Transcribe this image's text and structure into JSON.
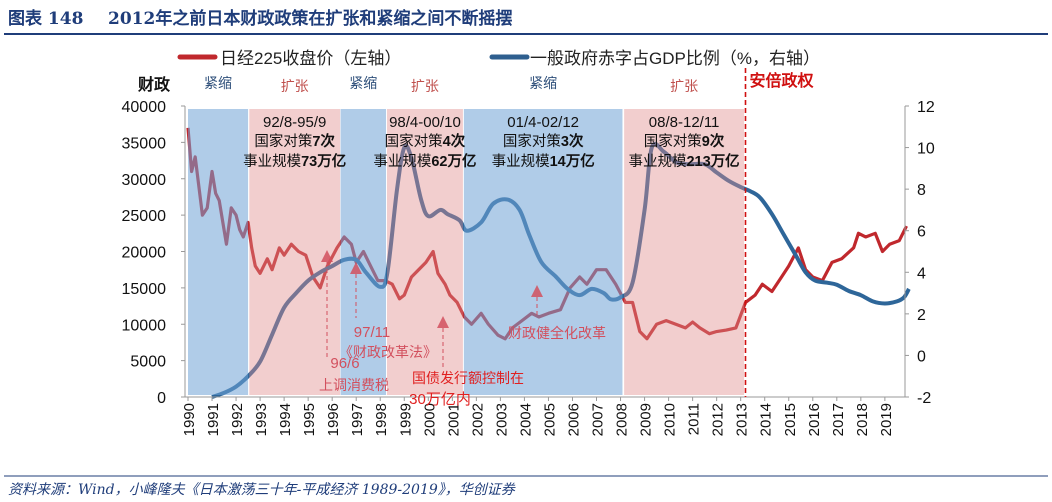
{
  "header": {
    "figure_label": "图表 148",
    "title": "2012年之前日本财政政策在扩张和紧缩之间不断摇摆"
  },
  "source": "资料来源：Wind，小峰隆夫《日本激荡三十年-平成经济 1989-2019》，华创证券",
  "colors": {
    "nikkei": "#c0282d",
    "deficit": "#2e6699",
    "tight_band": "#6fa3d6",
    "expand_band": "#e08a8a",
    "title": "#1f3d7a",
    "annotation": "#d2505e",
    "abe": "#d01010"
  },
  "chart_data": {
    "type": "line",
    "left_axis_title": "财政",
    "legend": [
      {
        "name": "日经225收盘价（左轴）",
        "color": "#c0282d"
      },
      {
        "name": "一般政府赤字占GDP比例（%，右轴）",
        "color": "#2e6699"
      }
    ],
    "xlim": [
      1990,
      2020
    ],
    "x_ticks": [
      "1990",
      "1991",
      "1992",
      "1993",
      "1994",
      "1995",
      "1996",
      "1997",
      "1998",
      "1999",
      "2000",
      "2001",
      "2002",
      "2003",
      "2004",
      "2005",
      "2006",
      "2007",
      "2008",
      "2009",
      "2010",
      "2011",
      "2012",
      "2013",
      "2014",
      "2015",
      "2016",
      "2017",
      "2018",
      "2019"
    ],
    "y_left": {
      "lim": [
        0,
        40000
      ],
      "ticks": [
        "0",
        "5000",
        "10000",
        "15000",
        "20000",
        "25000",
        "30000",
        "35000",
        "40000"
      ]
    },
    "y_right": {
      "lim": [
        -2,
        12
      ],
      "ticks": [
        "-2",
        "0",
        "2",
        "4",
        "6",
        "8",
        "10",
        "12"
      ]
    },
    "series": [
      {
        "name": "日经225收盘价（左轴）",
        "axis": "left",
        "x": [
          1990.0,
          1990.15,
          1990.3,
          1990.45,
          1990.6,
          1990.8,
          1991.0,
          1991.15,
          1991.3,
          1991.6,
          1991.8,
          1992.0,
          1992.15,
          1992.3,
          1992.5,
          1992.65,
          1992.8,
          1993.0,
          1993.3,
          1993.5,
          1993.8,
          1994.0,
          1994.3,
          1994.6,
          1994.9,
          1995.2,
          1995.5,
          1995.8,
          1996.2,
          1996.5,
          1996.8,
          1997.0,
          1997.3,
          1997.6,
          1997.9,
          1998.2,
          1998.5,
          1998.8,
          1999.0,
          1999.3,
          1999.6,
          1999.9,
          2000.2,
          2000.4,
          2000.7,
          2000.9,
          2001.2,
          2001.5,
          2001.8,
          2002.2,
          2002.5,
          2002.9,
          2003.2,
          2003.5,
          2003.9,
          2004.3,
          2004.6,
          2005.0,
          2005.5,
          2005.9,
          2006.3,
          2006.6,
          2007.0,
          2007.4,
          2007.8,
          2008.2,
          2008.5,
          2008.8,
          2009.1,
          2009.5,
          2009.9,
          2010.3,
          2010.7,
          2011.0,
          2011.3,
          2011.7,
          2012.0,
          2012.4,
          2012.8,
          2013.2,
          2013.6,
          2013.9,
          2014.3,
          2014.7,
          2015.0,
          2015.4,
          2015.7,
          2016.0,
          2016.4,
          2016.8,
          2017.2,
          2017.7,
          2017.9,
          2018.2,
          2018.6,
          2018.9,
          2019.2,
          2019.6,
          2019.9
        ],
        "y": [
          37000,
          31000,
          33000,
          29000,
          25000,
          26000,
          31000,
          28000,
          27000,
          21000,
          26000,
          25000,
          23000,
          22000,
          24000,
          20500,
          18000,
          17000,
          19000,
          17500,
          20500,
          19500,
          21000,
          20000,
          19500,
          16500,
          15000,
          18000,
          20500,
          22000,
          21000,
          18500,
          20000,
          18000,
          16000,
          16000,
          15500,
          13500,
          14000,
          16500,
          17500,
          18500,
          20000,
          17000,
          15500,
          14000,
          13000,
          11000,
          10000,
          11500,
          10000,
          8500,
          8000,
          9500,
          10500,
          11500,
          11000,
          11500,
          12000,
          15000,
          16500,
          15500,
          17500,
          17500,
          15500,
          13000,
          13000,
          9000,
          8000,
          10000,
          10500,
          10000,
          9500,
          10300,
          9500,
          8700,
          9000,
          9200,
          9500,
          13000,
          14000,
          15500,
          14500,
          16500,
          18000,
          20500,
          17500,
          16500,
          16000,
          18500,
          19000,
          20500,
          22500,
          22000,
          22500,
          20000,
          21000,
          21500,
          23500
        ]
      },
      {
        "name": "一般政府赤字占GDP比例（%，右轴）",
        "axis": "right",
        "x": [
          1991.0,
          1991.5,
          1992.0,
          1992.5,
          1993.0,
          1993.5,
          1994.0,
          1994.5,
          1995.0,
          1995.5,
          1996.0,
          1996.5,
          1997.0,
          1997.4,
          1998.0,
          1998.3,
          1998.7,
          1999.0,
          1999.3,
          1999.7,
          2000.0,
          2000.5,
          2000.8,
          2001.3,
          2001.6,
          2002.2,
          2002.7,
          2003.3,
          2003.8,
          2004.2,
          2004.7,
          2005.3,
          2005.8,
          2006.3,
          2006.8,
          2007.3,
          2007.6,
          2008.0,
          2008.5,
          2009.0,
          2009.3,
          2009.8,
          2010.3,
          2010.8,
          2011.5,
          2012.0,
          2012.5,
          2013.0,
          2013.4,
          2013.8,
          2014.3,
          2014.8,
          2015.3,
          2015.7,
          2016.1,
          2016.6,
          2017.0,
          2017.5,
          2018.0,
          2018.5,
          2019.0,
          2019.5,
          2019.8,
          2020.0
        ],
        "y": [
          -2.0,
          -1.8,
          -1.5,
          -1.0,
          -0.3,
          1.0,
          2.3,
          3.0,
          3.6,
          4.0,
          4.3,
          4.6,
          4.6,
          4.0,
          3.3,
          4.0,
          8.0,
          10.0,
          9.5,
          7.5,
          6.7,
          7.0,
          6.8,
          6.5,
          6.0,
          6.4,
          7.3,
          7.5,
          7.0,
          5.8,
          4.5,
          3.8,
          3.2,
          2.9,
          3.2,
          3.0,
          2.7,
          2.8,
          3.5,
          7.0,
          10.0,
          9.8,
          9.3,
          9.2,
          9.2,
          8.8,
          8.4,
          8.1,
          7.9,
          7.6,
          6.8,
          5.8,
          4.8,
          4.0,
          3.6,
          3.5,
          3.4,
          3.1,
          2.9,
          2.6,
          2.5,
          2.6,
          2.8,
          3.2
        ]
      }
    ],
    "bands": [
      {
        "type": "tight",
        "label": "紧缩",
        "from": 1990.0,
        "to": 1992.5
      },
      {
        "type": "expand",
        "label": "扩张",
        "from": 1992.55,
        "to": 1996.33,
        "period": "92/8-95/9",
        "count_pre": "国家对策",
        "count_num": "7",
        "count_suf": "次",
        "scale_pre": "事业规模",
        "scale_num": "73",
        "scale_suf": "万亿"
      },
      {
        "type": "tight",
        "label": "紧缩",
        "from": 1996.35,
        "to": 1998.24
      },
      {
        "type": "expand",
        "label": "扩张",
        "from": 1998.28,
        "to": 2001.44,
        "period": "98/4-00/10",
        "count_pre": "国家对策",
        "count_num": "4",
        "count_suf": "次",
        "scale_pre": "事业规模",
        "scale_num": "62",
        "scale_suf": "万亿"
      },
      {
        "type": "tight",
        "label": "紧缩",
        "from": 2001.48,
        "to": 2008.08,
        "period": "01/4-02/12",
        "count_pre": "国家对策",
        "count_num": "3",
        "count_suf": "次",
        "scale_pre": "事业规模",
        "scale_num": "14",
        "scale_suf": "万亿"
      },
      {
        "type": "expand",
        "label": "扩张",
        "from": 2008.15,
        "to": 2013.14,
        "period": "08/8-12/11",
        "count_pre": "国家对策",
        "count_num": "9",
        "count_suf": "次",
        "scale_pre": "事业规模",
        "scale_num": "213",
        "scale_suf": "万亿"
      }
    ],
    "abe_line": {
      "x": 2013.2,
      "label": "安倍政权"
    },
    "annotations": [
      {
        "lines": [
          "96/6",
          "上调消费税"
        ]
      },
      {
        "lines": [
          "97/11",
          "《财政改革法》"
        ]
      },
      {
        "lines": [
          "国债发行额控制在",
          "30万亿内"
        ]
      },
      {
        "lines": [
          "财政健全化改革"
        ]
      }
    ]
  }
}
